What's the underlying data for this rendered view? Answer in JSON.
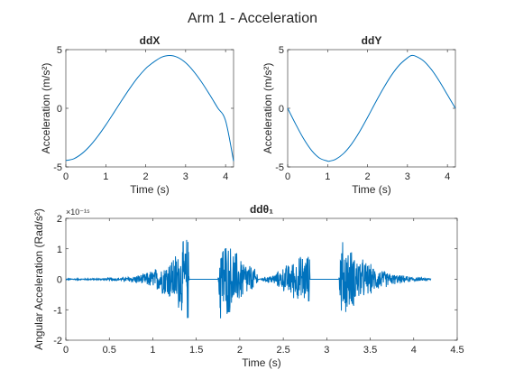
{
  "figure": {
    "title": "Arm 1 - Acceleration"
  },
  "chart_data": [
    {
      "type": "line",
      "title": "ddX",
      "xlabel": "Time (s)",
      "ylabel": "Acceleration (m/s²)",
      "xlim": [
        0,
        4.2
      ],
      "ylim": [
        -5,
        5
      ],
      "xticks": [
        0,
        1,
        2,
        3,
        4
      ],
      "yticks": [
        -5,
        0,
        5
      ],
      "grid": false,
      "series": [
        {
          "color": "#0072BD",
          "x": [
            0,
            0.2,
            0.4,
            0.6,
            0.8,
            1.0,
            1.2,
            1.4,
            1.6,
            1.8,
            2.0,
            2.1,
            2.2,
            2.4,
            2.6,
            2.8,
            3.0,
            3.2,
            3.4,
            3.6,
            3.8,
            4.0,
            4.2
          ],
          "y": [
            -4.45,
            -4.3,
            -3.87,
            -3.22,
            -2.39,
            -1.43,
            -0.39,
            0.67,
            1.69,
            2.62,
            3.39,
            3.68,
            3.94,
            4.36,
            4.5,
            4.34,
            3.88,
            3.15,
            2.23,
            1.17,
            0.05,
            -1.06,
            -4.5
          ]
        }
      ]
    },
    {
      "type": "line",
      "title": "ddY",
      "xlabel": "Time (s)",
      "ylabel": "Acceleration (m/s²)",
      "xlim": [
        0,
        4.2
      ],
      "ylim": [
        -5,
        5
      ],
      "xticks": [
        0,
        1,
        2,
        3,
        4
      ],
      "yticks": [
        -5,
        0,
        5
      ],
      "grid": false,
      "series": [
        {
          "color": "#0072BD",
          "x": [
            0,
            0.2,
            0.4,
            0.6,
            0.8,
            1.0,
            1.05,
            1.2,
            1.4,
            1.6,
            1.8,
            2.0,
            2.2,
            2.4,
            2.6,
            2.8,
            3.0,
            3.1,
            3.2,
            3.4,
            3.6,
            3.8,
            4.0,
            4.2
          ],
          "y": [
            0,
            -1.35,
            -2.6,
            -3.6,
            -4.25,
            -4.5,
            -4.5,
            -4.35,
            -3.85,
            -3.05,
            -2.0,
            -0.78,
            0.5,
            1.72,
            2.82,
            3.7,
            4.3,
            4.5,
            4.45,
            4.05,
            3.3,
            2.3,
            1.15,
            0
          ]
        }
      ]
    },
    {
      "type": "line",
      "title": "ddθ₁",
      "xlabel": "Time (s)",
      "ylabel": "Angular Acceleration (Rad/s²)",
      "ylabel_exponent": "×10⁻¹⁵",
      "xlim": [
        0,
        4.5
      ],
      "ylim": [
        -2,
        2
      ],
      "xticks": [
        0,
        0.5,
        1,
        1.5,
        2,
        2.5,
        3,
        3.5,
        4,
        4.5
      ],
      "yticks": [
        -2,
        -1,
        0,
        1,
        2
      ],
      "grid": false,
      "series": [
        {
          "color": "#0072BD",
          "description": "noise burst envelope",
          "envelope_t": [
            0,
            0.4,
            0.7,
            0.9,
            1.1,
            1.25,
            1.35,
            1.41,
            1.42,
            1.75,
            1.77,
            1.9,
            2.05,
            2.2,
            2.21,
            2.4,
            2.55,
            2.7,
            2.8,
            2.81,
            3.14,
            3.16,
            3.35,
            3.55,
            3.75,
            4.0,
            4.2
          ],
          "envelope_a": [
            0.02,
            0.03,
            0.08,
            0.2,
            0.5,
            0.9,
            1.35,
            1.6,
            0.0,
            0.0,
            1.6,
            1.2,
            0.7,
            0.3,
            0.0,
            0.2,
            0.55,
            0.85,
            0.95,
            0.0,
            0.0,
            1.45,
            0.85,
            0.45,
            0.2,
            0.08,
            0.03
          ]
        }
      ]
    }
  ]
}
